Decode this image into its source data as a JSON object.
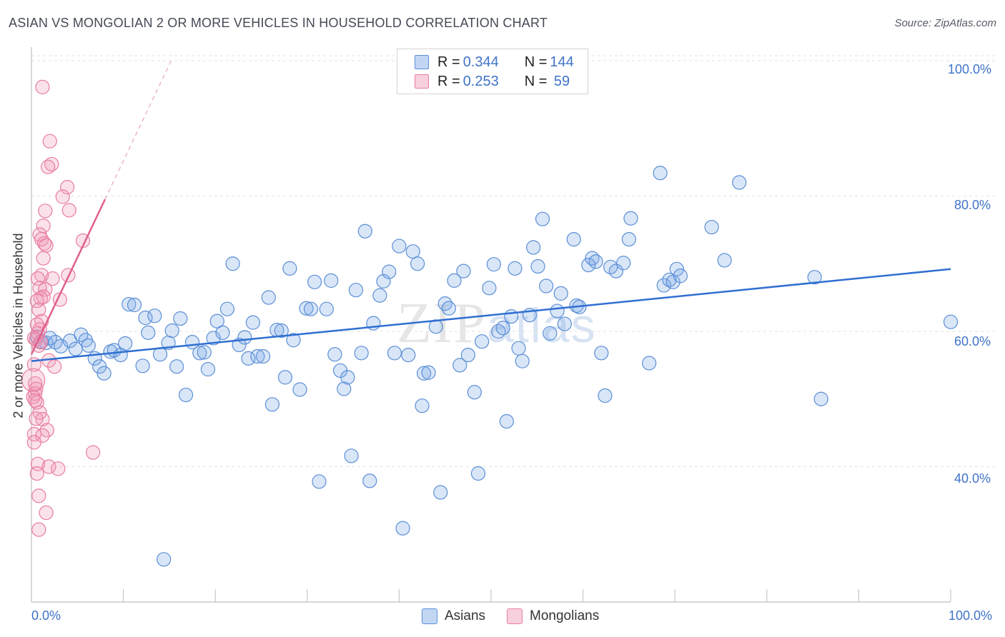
{
  "title": "ASIAN VS MONGOLIAN 2 OR MORE VEHICLES IN HOUSEHOLD CORRELATION CHART",
  "source": "Source: ZipAtlas.com",
  "watermark": {
    "a": "ZIP",
    "b": "atlas"
  },
  "legend": {
    "rows": [
      {
        "r_label": "R = ",
        "r": "0.344",
        "n_label": "N = ",
        "n": "144",
        "color": "#5b8fd6"
      },
      {
        "r_label": "R = ",
        "r": "0.253",
        "n_label": "N = ",
        "n": " 59",
        "color": "#e87da0"
      }
    ]
  },
  "bottom_legend": [
    "Asians",
    "Mongolians"
  ],
  "chart_data": {
    "type": "scatter",
    "title": "ASIAN VS MONGOLIAN 2 OR MORE VEHICLES IN HOUSEHOLD CORRELATION CHART",
    "xlabel": "",
    "ylabel": "2 or more Vehicles in Household",
    "xlim": [
      0,
      100
    ],
    "ylim": [
      20,
      102
    ],
    "x_ticks": [
      "0.0%",
      "100.0%"
    ],
    "y_ticks": [
      "40.0%",
      "60.0%",
      "80.0%",
      "100.0%"
    ],
    "y_tick_values": [
      40,
      60,
      80,
      100
    ],
    "grid": true,
    "legend_position": "top-center",
    "series": [
      {
        "name": "Asians",
        "color": "#5b8fd6",
        "fill": "rgba(120,165,230,0.28)",
        "trend": {
          "x": [
            0,
            100
          ],
          "y": [
            55.6,
            69.2
          ]
        },
        "points": [
          [
            0.6,
            59.2
          ],
          [
            1.1,
            58.5
          ],
          [
            1.6,
            58.3
          ],
          [
            2.0,
            59.0
          ],
          [
            2.6,
            58.4
          ],
          [
            3.2,
            57.8
          ],
          [
            4.2,
            58.6
          ],
          [
            4.8,
            57.4
          ],
          [
            5.4,
            59.5
          ],
          [
            5.9,
            58.7
          ],
          [
            6.2,
            57.9
          ],
          [
            6.9,
            56.0
          ],
          [
            7.4,
            54.8
          ],
          [
            7.9,
            53.8
          ],
          [
            8.6,
            57.0
          ],
          [
            9.0,
            57.2
          ],
          [
            9.7,
            56.5
          ],
          [
            10.2,
            58.2
          ],
          [
            10.6,
            64.0
          ],
          [
            11.2,
            63.9
          ],
          [
            12.1,
            54.9
          ],
          [
            12.4,
            62.0
          ],
          [
            12.7,
            59.8
          ],
          [
            13.4,
            62.3
          ],
          [
            14.0,
            56.6
          ],
          [
            14.4,
            26.3
          ],
          [
            14.9,
            58.3
          ],
          [
            15.3,
            60.1
          ],
          [
            15.8,
            54.8
          ],
          [
            16.2,
            61.9
          ],
          [
            16.8,
            50.6
          ],
          [
            17.5,
            58.4
          ],
          [
            18.3,
            56.8
          ],
          [
            18.8,
            56.9
          ],
          [
            19.2,
            54.4
          ],
          [
            19.8,
            59.0
          ],
          [
            20.2,
            61.5
          ],
          [
            20.8,
            59.8
          ],
          [
            21.3,
            63.3
          ],
          [
            21.9,
            70.0
          ],
          [
            22.6,
            58.0
          ],
          [
            23.2,
            59.1
          ],
          [
            23.6,
            56.0
          ],
          [
            24.1,
            61.3
          ],
          [
            24.6,
            56.3
          ],
          [
            25.2,
            56.3
          ],
          [
            25.8,
            65.0
          ],
          [
            26.2,
            49.2
          ],
          [
            26.7,
            60.2
          ],
          [
            27.2,
            60.1
          ],
          [
            27.6,
            53.2
          ],
          [
            28.1,
            69.3
          ],
          [
            28.5,
            58.7
          ],
          [
            29.2,
            51.4
          ],
          [
            29.9,
            63.4
          ],
          [
            30.4,
            63.3
          ],
          [
            30.8,
            67.3
          ],
          [
            31.3,
            37.8
          ],
          [
            32.1,
            63.3
          ],
          [
            32.6,
            67.5
          ],
          [
            33.0,
            56.6
          ],
          [
            33.6,
            54.2
          ],
          [
            34.0,
            51.5
          ],
          [
            34.4,
            53.2
          ],
          [
            34.8,
            41.6
          ],
          [
            35.3,
            66.1
          ],
          [
            35.9,
            56.8
          ],
          [
            36.3,
            74.8
          ],
          [
            36.8,
            37.9
          ],
          [
            37.2,
            61.2
          ],
          [
            37.9,
            65.3
          ],
          [
            38.3,
            67.4
          ],
          [
            38.9,
            68.8
          ],
          [
            39.5,
            56.8
          ],
          [
            40.0,
            72.6
          ],
          [
            40.4,
            30.9
          ],
          [
            41.0,
            56.5
          ],
          [
            41.5,
            71.8
          ],
          [
            42.0,
            70.0
          ],
          [
            42.5,
            49.0
          ],
          [
            42.7,
            53.8
          ],
          [
            43.2,
            53.9
          ],
          [
            44.0,
            60.7
          ],
          [
            44.5,
            36.2
          ],
          [
            45.0,
            64.1
          ],
          [
            45.4,
            63.4
          ],
          [
            46.0,
            67.5
          ],
          [
            46.6,
            55.0
          ],
          [
            47.0,
            68.9
          ],
          [
            47.5,
            56.5
          ],
          [
            48.2,
            51.0
          ],
          [
            48.6,
            39.0
          ],
          [
            49.0,
            58.5
          ],
          [
            49.8,
            66.4
          ],
          [
            50.3,
            69.9
          ],
          [
            50.8,
            60.0
          ],
          [
            51.3,
            60.5
          ],
          [
            51.7,
            46.7
          ],
          [
            52.2,
            62.2
          ],
          [
            52.6,
            69.3
          ],
          [
            53.0,
            57.5
          ],
          [
            53.4,
            55.6
          ],
          [
            54.2,
            62.4
          ],
          [
            54.6,
            72.4
          ],
          [
            55.1,
            69.6
          ],
          [
            55.6,
            76.6
          ],
          [
            56.0,
            66.7
          ],
          [
            56.4,
            59.7
          ],
          [
            57.2,
            63.0
          ],
          [
            57.6,
            65.6
          ],
          [
            58.0,
            61.1
          ],
          [
            59.0,
            73.6
          ],
          [
            59.3,
            63.8
          ],
          [
            59.6,
            63.6
          ],
          [
            60.6,
            69.8
          ],
          [
            61.0,
            70.8
          ],
          [
            61.4,
            70.3
          ],
          [
            62.0,
            56.8
          ],
          [
            62.4,
            50.5
          ],
          [
            63.0,
            69.5
          ],
          [
            63.6,
            68.9
          ],
          [
            64.4,
            70.1
          ],
          [
            65.0,
            73.6
          ],
          [
            65.2,
            76.7
          ],
          [
            67.2,
            55.3
          ],
          [
            68.4,
            83.4
          ],
          [
            68.8,
            66.8
          ],
          [
            69.4,
            67.6
          ],
          [
            69.8,
            67.3
          ],
          [
            70.2,
            69.2
          ],
          [
            70.6,
            68.2
          ],
          [
            74.0,
            75.4
          ],
          [
            75.4,
            70.5
          ],
          [
            77.0,
            82.0
          ],
          [
            85.2,
            68.0
          ],
          [
            85.9,
            50.0
          ],
          [
            100.0,
            61.4
          ]
        ]
      },
      {
        "name": "Mongolians",
        "color": "#e87da0",
        "fill": "rgba(240,150,180,0.28)",
        "trend_solid": {
          "x": [
            0,
            8.0
          ],
          "y": [
            56.6,
            79.5
          ]
        },
        "trend_dashed": {
          "x": [
            8.0,
            15.2
          ],
          "y": [
            79.5,
            100.0
          ]
        },
        "points": [
          [
            1.2,
            96.1
          ],
          [
            2.0,
            88.1
          ],
          [
            2.2,
            84.7
          ],
          [
            1.8,
            84.3
          ],
          [
            3.9,
            81.3
          ],
          [
            3.4,
            79.9
          ],
          [
            1.5,
            77.8
          ],
          [
            4.1,
            77.9
          ],
          [
            1.3,
            75.6
          ],
          [
            0.9,
            74.3
          ],
          [
            1.1,
            73.6
          ],
          [
            1.4,
            73.0
          ],
          [
            5.6,
            73.4
          ],
          [
            1.6,
            72.7
          ],
          [
            1.3,
            70.8
          ],
          [
            1.1,
            68.3
          ],
          [
            4.0,
            68.3
          ],
          [
            0.7,
            67.8
          ],
          [
            2.3,
            67.8
          ],
          [
            0.9,
            66.4
          ],
          [
            1.5,
            66.2
          ],
          [
            1.3,
            65.1
          ],
          [
            1.0,
            64.9
          ],
          [
            0.6,
            64.5
          ],
          [
            3.1,
            64.7
          ],
          [
            0.8,
            63.2
          ],
          [
            1.1,
            61.5
          ],
          [
            0.9,
            60.3
          ],
          [
            0.7,
            59.7
          ],
          [
            0.3,
            59.0
          ],
          [
            0.5,
            58.8
          ],
          [
            0.8,
            57.9
          ],
          [
            1.9,
            55.7
          ],
          [
            0.3,
            55.1
          ],
          [
            2.5,
            54.8
          ],
          [
            0.4,
            52.3
          ],
          [
            0.5,
            51.5
          ],
          [
            0.4,
            50.8
          ],
          [
            0.2,
            50.3
          ],
          [
            0.6,
            49.5
          ],
          [
            0.9,
            48.0
          ],
          [
            1.2,
            47.0
          ],
          [
            0.5,
            47.1
          ],
          [
            1.7,
            45.4
          ],
          [
            0.3,
            44.8
          ],
          [
            1.2,
            44.6
          ],
          [
            0.3,
            43.6
          ],
          [
            0.7,
            40.4
          ],
          [
            1.9,
            40.0
          ],
          [
            2.9,
            39.7
          ],
          [
            0.6,
            39.0
          ],
          [
            6.7,
            42.1
          ],
          [
            0.8,
            35.7
          ],
          [
            1.6,
            33.2
          ],
          [
            0.8,
            30.7
          ],
          [
            0.2,
            52.8
          ],
          [
            0.4,
            49.8
          ],
          [
            1.0,
            58.4
          ],
          [
            0.6,
            61.0
          ]
        ]
      }
    ]
  }
}
